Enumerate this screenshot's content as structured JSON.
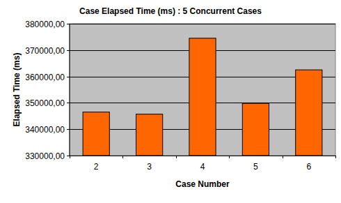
{
  "chart_data": {
    "type": "bar",
    "title": "Case Elapsed Time (ms) : 5 Concurrent Cases",
    "x_label": "Case Number",
    "y_label": "Elapsed Time (ms)",
    "categories": [
      "2",
      "3",
      "4",
      "5",
      "6"
    ],
    "values": [
      346500,
      345700,
      374500,
      349800,
      362500
    ],
    "color": "#ff6600",
    "ylim": [
      330000,
      380000
    ],
    "yticks": [
      {
        "value": 330000,
        "label": "330000,00"
      },
      {
        "value": 340000,
        "label": "340000,00"
      },
      {
        "value": 350000,
        "label": "350000,00"
      },
      {
        "value": 360000,
        "label": "360000,00"
      },
      {
        "value": 370000,
        "label": "370000,00"
      },
      {
        "value": 380000,
        "label": "380000,00"
      }
    ],
    "grid": true
  }
}
